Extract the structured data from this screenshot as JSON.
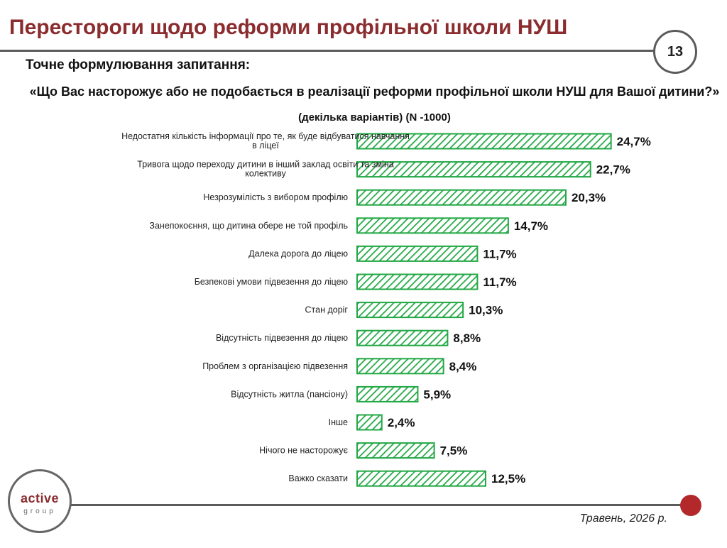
{
  "header": {
    "title": "Перестороги щодо реформи профільної школи НУШ",
    "page_number": "13",
    "subtitle": "Точне формулювання запитання:",
    "question": "«Що Вас насторожує або не подобається в реалізації реформи профільної школи НУШ для Вашої дитини?»",
    "question_note": "(декілька варіантів) (N -1000)"
  },
  "footer": {
    "logo_main": "active",
    "logo_sub": "group",
    "date": "Травень, 2026 р."
  },
  "colors": {
    "bar_stroke": "#22a845",
    "bar_hatch": "#22a845",
    "title": "#8b2c2f",
    "accent_dot": "#b3292b"
  },
  "chart_data": {
    "type": "bar",
    "orientation": "horizontal",
    "categories": [
      [
        "Недостатня кількість інформації про те, як буде відбуватися навчання",
        "в ліцеї"
      ],
      [
        "Тривога щодо переходу дитини в інший заклад освіти та зміна",
        "колективу"
      ],
      [
        "Незрозумілість з вибором профілю"
      ],
      [
        "Занепокоєння, що дитина обере не той профіль"
      ],
      [
        "Далека дорога до ліцею"
      ],
      [
        "Безпекові умови підвезення до ліцею"
      ],
      [
        "Стан доріг"
      ],
      [
        "Відсутність підвезення до ліцею"
      ],
      [
        "Проблем з організацією підвезення"
      ],
      [
        "Відсутність житла (пансіону)"
      ],
      [
        "Інше"
      ],
      [
        "Нічого не насторожує"
      ],
      [
        "Важко сказати"
      ]
    ],
    "values": [
      24.7,
      22.7,
      20.3,
      14.7,
      11.7,
      11.7,
      10.3,
      8.8,
      8.4,
      5.9,
      2.4,
      7.5,
      12.5
    ],
    "value_labels": [
      "24,7%",
      "22,7%",
      "20,3%",
      "14,7%",
      "11,7%",
      "11,7%",
      "10,3%",
      "8,8%",
      "8,4%",
      "5,9%",
      "2,4%",
      "7,5%",
      "12,5%"
    ],
    "xlim": [
      0,
      25
    ],
    "grid": false,
    "legend": "none"
  }
}
